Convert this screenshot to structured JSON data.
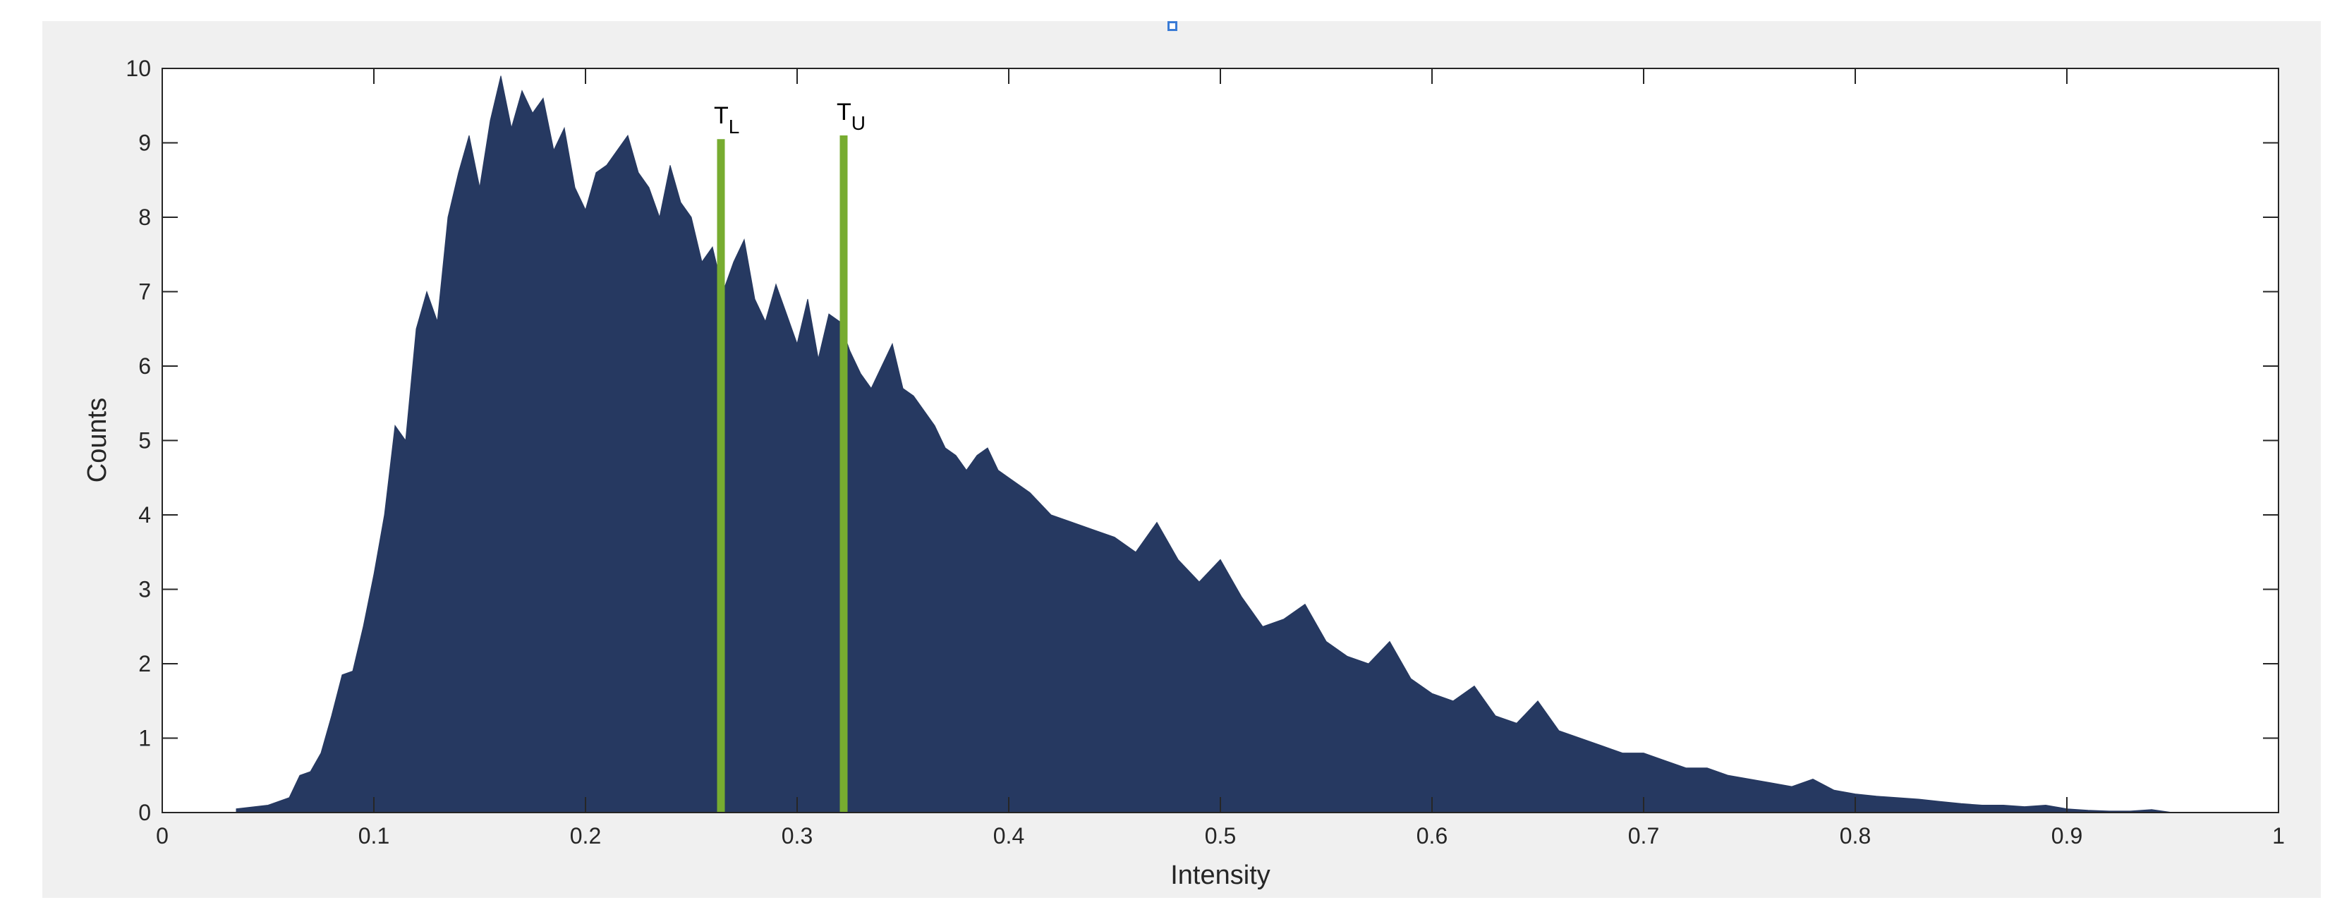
{
  "chart_data": {
    "type": "area",
    "title": "",
    "xlabel": "Intensity",
    "ylabel": "Counts",
    "xlim": [
      0,
      1
    ],
    "ylim": [
      0,
      10
    ],
    "xticks": [
      "0",
      "0.1",
      "0.2",
      "0.3",
      "0.4",
      "0.5",
      "0.6",
      "0.7",
      "0.8",
      "0.9",
      "1"
    ],
    "yticks": [
      "0",
      "1",
      "2",
      "3",
      "4",
      "5",
      "6",
      "7",
      "8",
      "9",
      "10"
    ],
    "grid": false,
    "legend": "none",
    "fill_color": "#263961",
    "series": [
      {
        "x": [
          0.035,
          0.05,
          0.06,
          0.065,
          0.07,
          0.075,
          0.08,
          0.085,
          0.09,
          0.095,
          0.1,
          0.105,
          0.11,
          0.115,
          0.12,
          0.125,
          0.13,
          0.135,
          0.14,
          0.145,
          0.15,
          0.155,
          0.16,
          0.165,
          0.17,
          0.175,
          0.18,
          0.185,
          0.19,
          0.195,
          0.2,
          0.205,
          0.21,
          0.215,
          0.22,
          0.225,
          0.23,
          0.235,
          0.24,
          0.245,
          0.25,
          0.255,
          0.26,
          0.265,
          0.27,
          0.275,
          0.28,
          0.285,
          0.29,
          0.295,
          0.3,
          0.305,
          0.31,
          0.315,
          0.32,
          0.325,
          0.33,
          0.335,
          0.34,
          0.345,
          0.35,
          0.355,
          0.36,
          0.365,
          0.37,
          0.375,
          0.38,
          0.385,
          0.39,
          0.395,
          0.4,
          0.41,
          0.42,
          0.43,
          0.44,
          0.45,
          0.46,
          0.47,
          0.48,
          0.49,
          0.5,
          0.51,
          0.52,
          0.53,
          0.54,
          0.55,
          0.56,
          0.57,
          0.58,
          0.59,
          0.6,
          0.61,
          0.62,
          0.63,
          0.64,
          0.65,
          0.66,
          0.67,
          0.68,
          0.69,
          0.7,
          0.71,
          0.72,
          0.73,
          0.74,
          0.75,
          0.76,
          0.77,
          0.78,
          0.79,
          0.8,
          0.81,
          0.82,
          0.83,
          0.84,
          0.85,
          0.86,
          0.87,
          0.88,
          0.89,
          0.9,
          0.91,
          0.92,
          0.93,
          0.94,
          0.95
        ],
        "y": [
          0.05,
          0.1,
          0.2,
          0.5,
          0.55,
          0.8,
          1.3,
          1.85,
          1.9,
          2.5,
          3.2,
          4.0,
          5.2,
          5.0,
          6.5,
          7.0,
          6.6,
          8.0,
          8.6,
          9.1,
          8.4,
          9.3,
          9.9,
          9.2,
          9.7,
          9.4,
          9.6,
          8.9,
          9.2,
          8.4,
          8.1,
          8.6,
          8.7,
          8.9,
          9.1,
          8.6,
          8.4,
          8.0,
          8.7,
          8.2,
          8.0,
          7.4,
          7.6,
          7.0,
          7.4,
          7.7,
          6.9,
          6.6,
          7.1,
          6.7,
          6.3,
          6.9,
          6.1,
          6.7,
          6.6,
          6.2,
          5.9,
          5.7,
          6.0,
          6.3,
          5.7,
          5.6,
          5.4,
          5.2,
          4.9,
          4.8,
          4.6,
          4.8,
          4.9,
          4.6,
          4.5,
          4.3,
          4.0,
          3.9,
          3.8,
          3.7,
          3.5,
          3.9,
          3.4,
          3.1,
          3.4,
          2.9,
          2.5,
          2.6,
          2.8,
          2.3,
          2.1,
          2.0,
          2.3,
          1.8,
          1.6,
          1.5,
          1.7,
          1.3,
          1.2,
          1.5,
          1.1,
          1.0,
          0.9,
          0.8,
          0.8,
          0.7,
          0.6,
          0.6,
          0.5,
          0.45,
          0.4,
          0.35,
          0.45,
          0.3,
          0.25,
          0.22,
          0.2,
          0.18,
          0.15,
          0.12,
          0.1,
          0.1,
          0.08,
          0.1,
          0.05,
          0.03,
          0.02,
          0.02,
          0.04,
          0.0
        ]
      }
    ],
    "threshold_lines": [
      {
        "label": "T",
        "subscript": "L",
        "x": 0.264,
        "y_top": 9.05,
        "color": "#77ac30"
      },
      {
        "label": "T",
        "subscript": "U",
        "x": 0.322,
        "y_top": 9.1,
        "color": "#77ac30"
      }
    ]
  }
}
